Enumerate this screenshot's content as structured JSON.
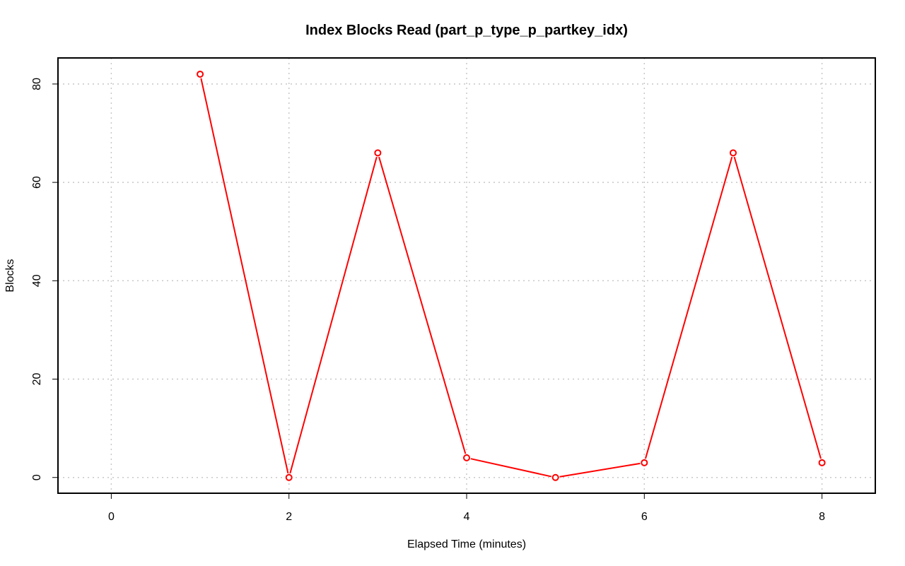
{
  "chart_data": {
    "type": "line",
    "title": "Index Blocks Read (part_p_type_p_partkey_idx)",
    "xlabel": "Elapsed Time (minutes)",
    "ylabel": "Blocks",
    "xlim": [
      -0.6,
      8.6
    ],
    "ylim": [
      -3.2,
      85.3
    ],
    "x_ticks": [
      0,
      2,
      4,
      6,
      8
    ],
    "y_ticks": [
      0,
      20,
      40,
      60,
      80
    ],
    "x_tick_labels": [
      "0",
      "2",
      "4",
      "6",
      "8"
    ],
    "y_tick_labels": [
      "0",
      "20",
      "40",
      "60",
      "80"
    ],
    "grid": true,
    "series": [
      {
        "color": "#ff0000",
        "marker": "open-circle",
        "x": [
          1,
          2,
          3,
          4,
          5,
          6,
          7,
          8
        ],
        "y": [
          82,
          0,
          66,
          4,
          0,
          3,
          66,
          3
        ]
      }
    ]
  }
}
